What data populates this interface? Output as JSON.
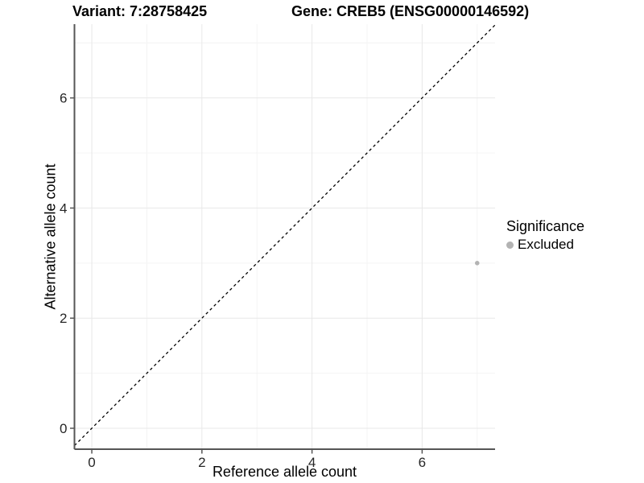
{
  "title_left": "Variant: 7:28758425",
  "title_right": "Gene: CREB5 (ENSG00000146592)",
  "legend": {
    "title": "Significance",
    "items": [
      {
        "label": "Excluded",
        "color": "#b3b3b3"
      }
    ]
  },
  "chart_data": {
    "type": "scatter",
    "xlabel": "Reference allele count",
    "ylabel": "Alternative allele count",
    "xlim": [
      -0.315,
      7.325
    ],
    "ylim": [
      -0.38,
      7.34
    ],
    "x_major_ticks": [
      0,
      2,
      4,
      6
    ],
    "x_minor_ticks": [
      1,
      3,
      5,
      7
    ],
    "y_major_ticks": [
      0,
      2,
      4,
      6
    ],
    "y_minor_ticks": [
      1,
      3,
      5,
      7
    ],
    "grid": true,
    "legend_position": "right",
    "identity_line": {
      "style": "dashed",
      "from": -0.315,
      "to": 7.325,
      "color": "#000000"
    },
    "series": [
      {
        "name": "Excluded",
        "color": "#b3b3b3",
        "points": [
          {
            "x": 7,
            "y": 3
          }
        ]
      }
    ],
    "colors": {
      "grid_major": "#e8e8e8",
      "grid_minor": "#f4f4f4",
      "axis_line": "#565656",
      "tick_label": "#262626",
      "point": "#b3b3b3"
    }
  }
}
